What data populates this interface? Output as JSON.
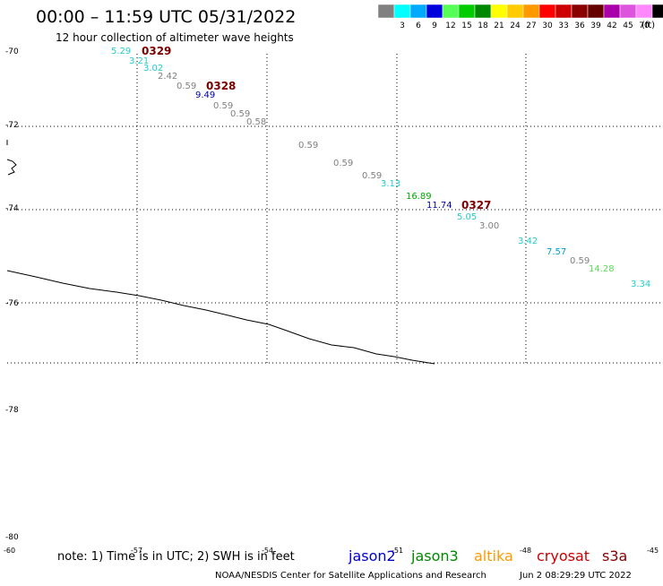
{
  "title": "00:00 – 11:59 UTC 05/31/2022",
  "subtitle": "12 hour collection of altimeter wave heights",
  "legend": {
    "unit": "(ft)",
    "items": [
      {
        "label": "",
        "color": "#808080"
      },
      {
        "label": "3",
        "color": "#00ffff"
      },
      {
        "label": "6",
        "color": "#00aaff"
      },
      {
        "label": "9",
        "color": "#0000dd"
      },
      {
        "label": "12",
        "color": "#55ff55"
      },
      {
        "label": "15",
        "color": "#00cc00"
      },
      {
        "label": "18",
        "color": "#008800"
      },
      {
        "label": "21",
        "color": "#ffff00"
      },
      {
        "label": "24",
        "color": "#ffcc00"
      },
      {
        "label": "27",
        "color": "#ff9900"
      },
      {
        "label": "30",
        "color": "#ff0000"
      },
      {
        "label": "33",
        "color": "#cc0000"
      },
      {
        "label": "36",
        "color": "#880000"
      },
      {
        "label": "39",
        "color": "#660000"
      },
      {
        "label": "42",
        "color": "#aa00aa"
      },
      {
        "label": "45",
        "color": "#dd55dd"
      },
      {
        "label": "70",
        "color": "#ff88ff"
      },
      {
        "label": "",
        "color": "#000000"
      }
    ]
  },
  "lat_labels": [
    "-70",
    "-72",
    "-74",
    "-76",
    "-78",
    "-80"
  ],
  "lon_labels": [
    "-60",
    "-57",
    "-54",
    "-51",
    "-48",
    "-45"
  ],
  "track_labels": [
    {
      "text": "0329",
      "color": "#7a0000"
    },
    {
      "text": "0328",
      "color": "#7a0000"
    },
    {
      "text": "0327",
      "color": "#7a0000"
    }
  ],
  "wave_points": [
    {
      "value": "5.29",
      "color": "#22cccc"
    },
    {
      "value": "3.21",
      "color": "#22cccc"
    },
    {
      "value": "3.02",
      "color": "#22cccc"
    },
    {
      "value": "2.42",
      "color": "#808080"
    },
    {
      "value": "0.59",
      "color": "#808080"
    },
    {
      "value": "9.49",
      "color": "#0000aa"
    },
    {
      "value": "0.59",
      "color": "#808080"
    },
    {
      "value": "0.59",
      "color": "#808080"
    },
    {
      "value": "0.58",
      "color": "#808080"
    },
    {
      "value": "0.59",
      "color": "#808080"
    },
    {
      "value": "0.59",
      "color": "#808080"
    },
    {
      "value": "0.59",
      "color": "#808080"
    },
    {
      "value": "3.13",
      "color": "#22cccc"
    },
    {
      "value": "16.89",
      "color": "#00aa00"
    },
    {
      "value": "11.74",
      "color": "#0000aa"
    },
    {
      "value": "5.05",
      "color": "#22cccc"
    },
    {
      "value": "3.00",
      "color": "#808080"
    },
    {
      "value": "3.42",
      "color": "#22cccc"
    },
    {
      "value": "7.57",
      "color": "#0099cc"
    },
    {
      "value": "0.59",
      "color": "#808080"
    },
    {
      "value": "14.28",
      "color": "#55dd55"
    },
    {
      "value": "3.34",
      "color": "#22cccc"
    }
  ],
  "footer": {
    "note": "note: 1) Time is in UTC; 2) SWH is in feet",
    "satellites": [
      {
        "name": "jason2",
        "color": "#0000cc"
      },
      {
        "name": "jason3",
        "color": "#008800"
      },
      {
        "name": "altika",
        "color": "#ff9900"
      },
      {
        "name": "cryosat",
        "color": "#cc0000"
      },
      {
        "name": "s3a",
        "color": "#880000"
      }
    ],
    "credit": "NOAA/NESDIS Center for Satellite Applications and Research",
    "timestamp": "Jun  2 08:29:29 UTC 2022"
  }
}
